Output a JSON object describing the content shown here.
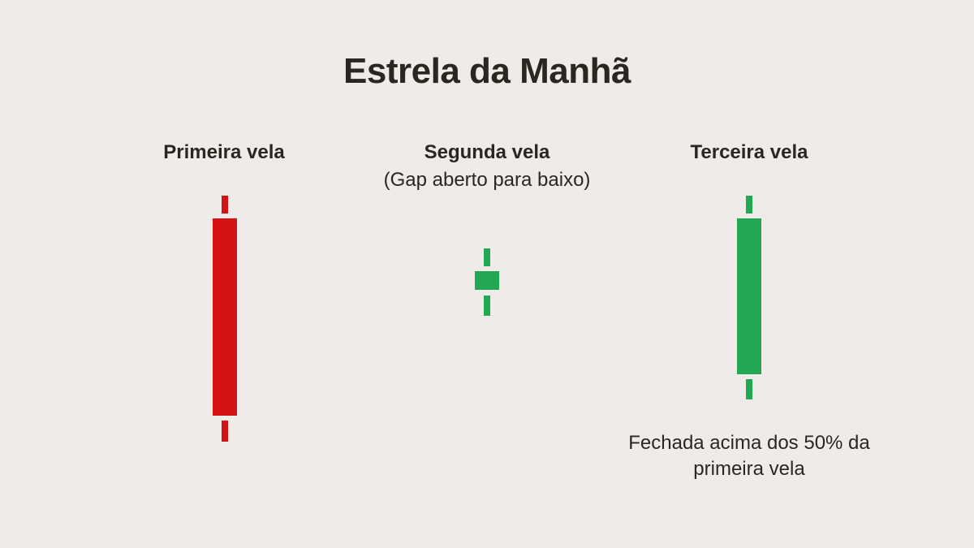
{
  "title": "Estrela da Manhã",
  "candles": [
    {
      "label": "Primeira vela",
      "direction": "bearish",
      "color": "#d31314"
    },
    {
      "label": "Segunda vela",
      "sublabel": "(Gap aberto para baixo)",
      "direction": "bullish",
      "color": "#22a853"
    },
    {
      "label": "Terceira vela",
      "direction": "bullish",
      "color": "#22a853",
      "note": "Fechada acima dos 50% da primeira vela"
    }
  ],
  "colors": {
    "background": "#efebe8",
    "text": "#2b2620",
    "bearish": "#d31314",
    "bullish": "#22a853"
  }
}
